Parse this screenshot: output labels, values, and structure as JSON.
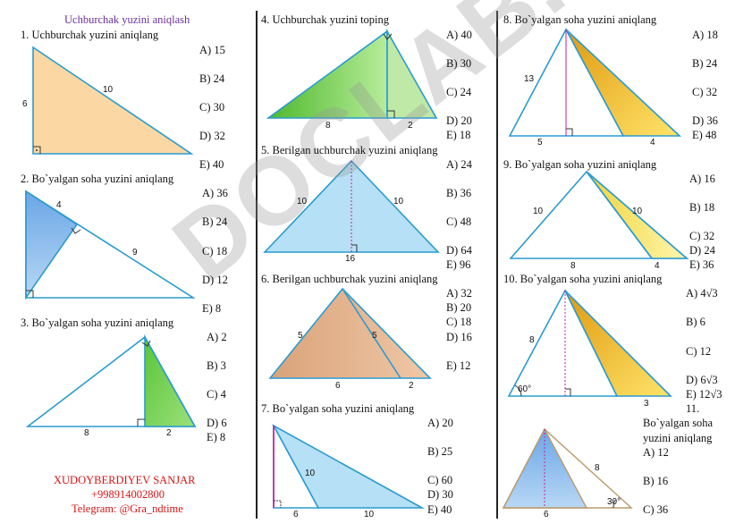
{
  "page_title": "Uchburchak yuzini aniqlash",
  "watermark": "DOCLAB.UZ",
  "author": {
    "name": "XUDOYBERDIYEV SANJAR",
    "phone": "+998914002800",
    "telegram": "Telegram: @Gra_ndtime"
  },
  "problems": [
    {
      "question": "1. Uchburchak yuzini aniqlang",
      "labels": [
        "6",
        "10"
      ],
      "options": [
        "A) 15",
        "B) 24",
        "C) 30",
        "D) 32",
        "E) 40"
      ]
    },
    {
      "question": "2. Bo`yalgan soha yuzini aniqlang",
      "labels": [
        "4",
        "9"
      ],
      "options": [
        "A) 36",
        "B) 24",
        "C) 18",
        "D) 12",
        "E) 8"
      ]
    },
    {
      "question": "3. Bo`yalgan soha yuzini aniqlang",
      "labels": [
        "8",
        "2"
      ],
      "options": [
        "A) 2",
        "B) 3",
        "C) 4",
        "D) 6",
        "E) 8"
      ]
    },
    {
      "question": "4. Uchburchak yuzini toping",
      "labels": [
        "8",
        "2"
      ],
      "options": [
        "A) 40",
        "B) 30",
        "C) 24",
        "D) 20",
        "E) 18"
      ]
    },
    {
      "question": "5. Berilgan uchburchak yuzini aniqlang",
      "labels": [
        "10",
        "10",
        "16"
      ],
      "options": [
        "A) 24",
        "B) 36",
        "C) 48",
        "D) 64",
        "E) 96"
      ]
    },
    {
      "question": "6. Berilgan uchburchak yuzini aniqlang",
      "labels": [
        "5",
        "5",
        "6",
        "2"
      ],
      "options": [
        "A) 32",
        "B) 20",
        "C) 18",
        "D) 16",
        "E) 12"
      ]
    },
    {
      "question": "7. Bo`yalgan soha yuzini aniqlang",
      "labels": [
        "10",
        "6",
        "10"
      ],
      "options": [
        "A) 20",
        "B) 25",
        "C) 60",
        "D) 30",
        "E) 40"
      ]
    },
    {
      "question": "8. Bo`yalgan soha yuzini aniqlang",
      "labels": [
        "13",
        "5",
        "4"
      ],
      "options": [
        "A) 18",
        "B) 24",
        "C) 32",
        "D) 36",
        "E) 48"
      ]
    },
    {
      "question": "9. Bo`yalgan soha yuzini aniqlang",
      "labels": [
        "10",
        "10",
        "8",
        "4"
      ],
      "options": [
        "A) 16",
        "B) 18",
        "C) 32",
        "D) 24",
        "E) 36"
      ]
    },
    {
      "question": "10. Bo`yalgan soha yuzini aniqlang",
      "labels": [
        "8",
        "60°",
        "3"
      ],
      "options": [
        "A) 4√3",
        "B) 6",
        "C) 12",
        "D) 6√3",
        "E) 12√3"
      ]
    },
    {
      "question_lines": [
        "11.",
        "Bo`yalgan soha",
        "yuzini aniqlang"
      ],
      "labels": [
        "8",
        "6",
        "30°"
      ],
      "options": [
        "A) 12",
        "B) 16",
        "C) 36"
      ]
    }
  ]
}
